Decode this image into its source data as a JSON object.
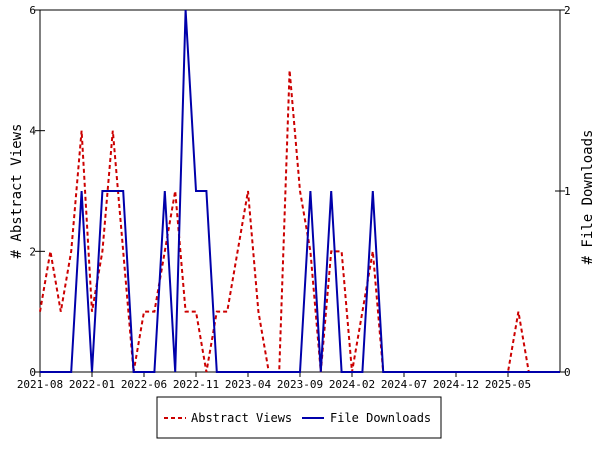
{
  "chart_data": {
    "type": "line",
    "x_ticks": [
      "2021-08",
      "2022-01",
      "2022-06",
      "2022-11",
      "2023-04",
      "2023-09",
      "2024-02",
      "2024-07",
      "2024-12",
      "2025-05"
    ],
    "x_months": [
      "2021-08",
      "2021-09",
      "2021-10",
      "2021-11",
      "2021-12",
      "2022-01",
      "2022-02",
      "2022-03",
      "2022-04",
      "2022-05",
      "2022-06",
      "2022-07",
      "2022-08",
      "2022-09",
      "2022-10",
      "2022-11",
      "2022-12",
      "2023-01",
      "2023-02",
      "2023-03",
      "2023-04",
      "2023-05",
      "2023-06",
      "2023-07",
      "2023-08",
      "2023-09",
      "2023-10",
      "2023-11",
      "2023-12",
      "2024-01",
      "2024-02",
      "2024-03",
      "2024-04",
      "2024-05",
      "2024-06",
      "2024-07",
      "2024-08",
      "2024-09",
      "2024-10",
      "2024-11",
      "2024-12",
      "2025-01",
      "2025-02",
      "2025-03",
      "2025-04",
      "2025-05",
      "2025-06",
      "2025-07",
      "2025-08",
      "2025-09",
      "2025-10"
    ],
    "y_left": {
      "label": "# Abstract Views",
      "range": [
        0,
        6
      ],
      "ticks": [
        "0",
        "2",
        "4",
        "6"
      ]
    },
    "y_right": {
      "label": "# File Downloads",
      "range": [
        0,
        2
      ],
      "ticks": [
        "0",
        "1",
        "2"
      ]
    },
    "series": [
      {
        "name": "Abstract Views",
        "axis": "left",
        "color": "#cc0000",
        "style": "dashed",
        "values": [
          1,
          2,
          1,
          2,
          4,
          1,
          2,
          4,
          2,
          0,
          1,
          1,
          2,
          3,
          1,
          1,
          0,
          1,
          1,
          2,
          3,
          1,
          0,
          0,
          5,
          3,
          2,
          0,
          2,
          2,
          0,
          1,
          2,
          0,
          0,
          0,
          0,
          0,
          0,
          0,
          0,
          0,
          0,
          0,
          0,
          0,
          1,
          0,
          0,
          0,
          0
        ]
      },
      {
        "name": "File Downloads",
        "axis": "right",
        "color": "#0000aa",
        "style": "solid",
        "values": [
          0,
          0,
          0,
          0,
          1,
          0,
          1,
          1,
          1,
          0,
          0,
          0,
          1,
          0,
          2,
          1,
          1,
          0,
          0,
          0,
          0,
          0,
          0,
          0,
          0,
          0,
          1,
          0,
          1,
          0,
          0,
          0,
          1,
          0,
          0,
          0,
          0,
          0,
          0,
          0,
          0,
          0,
          0,
          0,
          0,
          0,
          0,
          0,
          0,
          0,
          0
        ]
      }
    ],
    "legend_placement": "bottom-center",
    "grid": false
  }
}
